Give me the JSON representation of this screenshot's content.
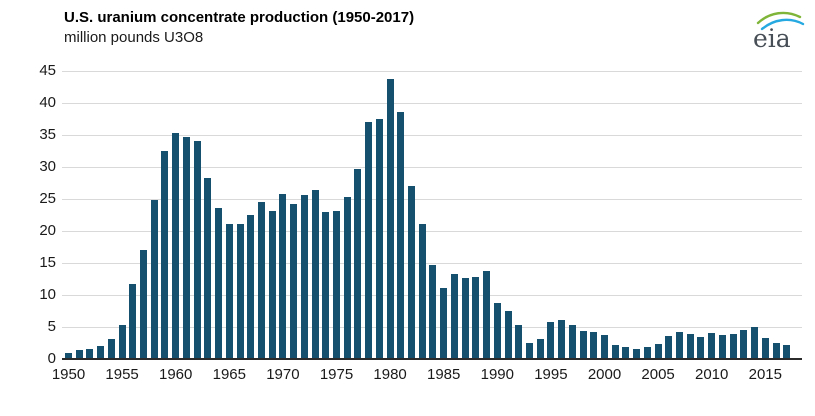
{
  "header": {
    "title": "U.S. uranium concentrate production (1950-2017)",
    "subtitle": "million pounds U3O8",
    "logo_text": "eia"
  },
  "chart_data": {
    "type": "bar",
    "title": "U.S. uranium concentrate production (1950-2017)",
    "subtitle": "million pounds U3O8",
    "xlabel": "",
    "ylabel": "million pounds U3O8",
    "ylim": [
      0,
      45
    ],
    "yticks": [
      0,
      5,
      10,
      15,
      20,
      25,
      30,
      35,
      40,
      45
    ],
    "xticks": [
      1950,
      1955,
      1960,
      1965,
      1970,
      1975,
      1980,
      1985,
      1990,
      1995,
      2000,
      2005,
      2010,
      2015
    ],
    "grid": "horizontal",
    "legend": "none",
    "x": [
      1950,
      1951,
      1952,
      1953,
      1954,
      1955,
      1956,
      1957,
      1958,
      1959,
      1960,
      1961,
      1962,
      1963,
      1964,
      1965,
      1966,
      1967,
      1968,
      1969,
      1970,
      1971,
      1972,
      1973,
      1974,
      1975,
      1976,
      1977,
      1978,
      1979,
      1980,
      1981,
      1982,
      1983,
      1984,
      1985,
      1986,
      1987,
      1988,
      1989,
      1990,
      1991,
      1992,
      1993,
      1994,
      1995,
      1996,
      1997,
      1998,
      1999,
      2000,
      2001,
      2002,
      2003,
      2004,
      2005,
      2006,
      2007,
      2008,
      2009,
      2010,
      2011,
      2012,
      2013,
      2014,
      2015,
      2016,
      2017
    ],
    "values": [
      0.8,
      1.2,
      1.4,
      1.9,
      3.0,
      5.2,
      11.5,
      16.8,
      24.7,
      32.4,
      35.1,
      34.6,
      33.9,
      28.2,
      23.4,
      20.9,
      21.0,
      22.4,
      24.3,
      23.0,
      25.6,
      24.1,
      25.4,
      26.3,
      22.8,
      22.9,
      25.2,
      29.6,
      36.9,
      37.3,
      43.6,
      38.4,
      26.8,
      21.0,
      14.6,
      11.0,
      13.2,
      12.5,
      12.7,
      13.6,
      8.6,
      7.3,
      5.2,
      2.4,
      3.0,
      5.6,
      6.0,
      5.2,
      4.2,
      4.1,
      3.6,
      2.0,
      1.7,
      1.4,
      1.7,
      2.2,
      3.5,
      4.1,
      3.7,
      3.3,
      3.9,
      3.6,
      3.8,
      4.4,
      4.8,
      3.1,
      2.4,
      2.1
    ],
    "bar_color": "#15506e",
    "gridline_color": "#d9d9d9",
    "axis_color": "#2b2b2b",
    "logo_colors": {
      "green_swoosh": "#7fb539",
      "blue_swoosh": "#25a9e0",
      "text": "#474e56"
    }
  }
}
